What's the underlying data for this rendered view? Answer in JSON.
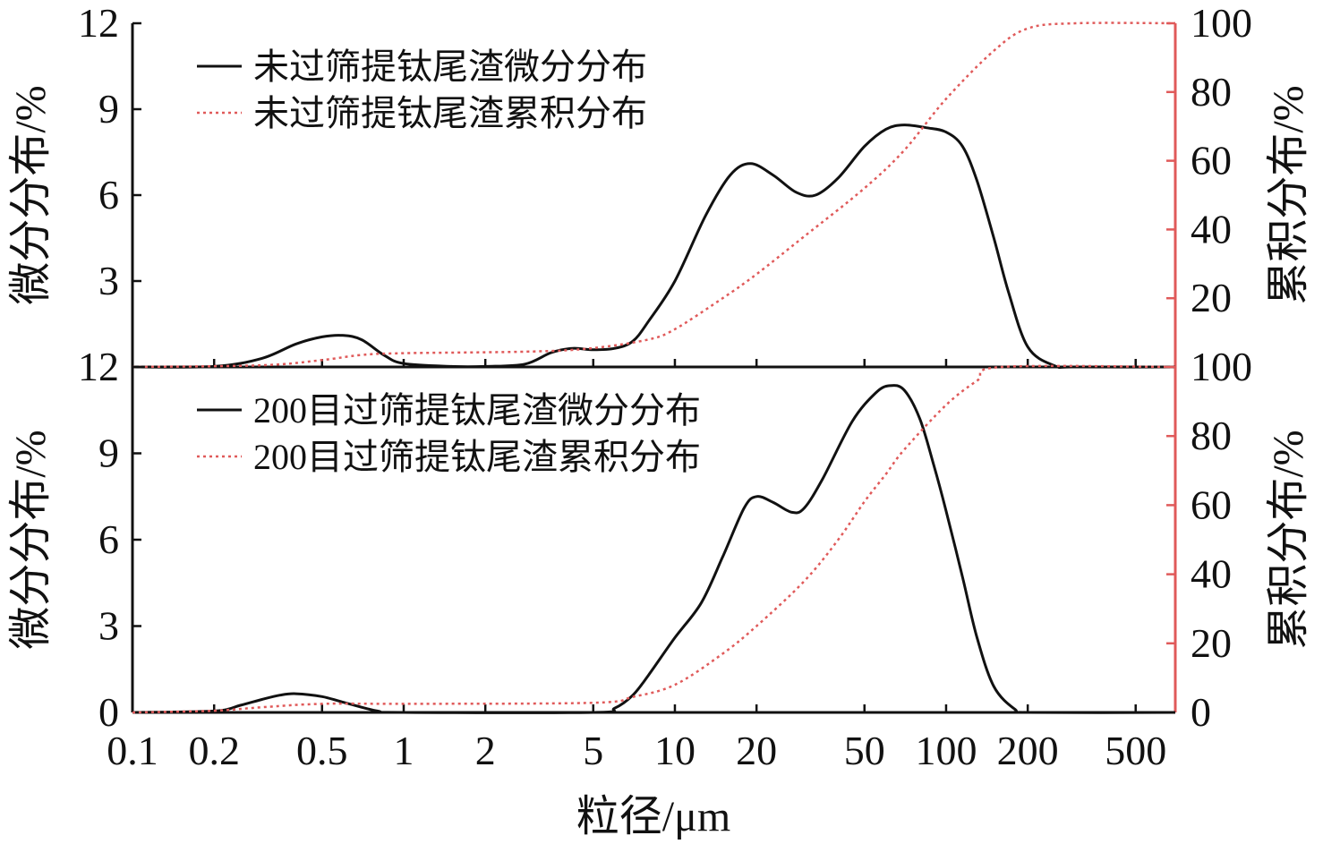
{
  "x_axis": {
    "label": "粒径/μm",
    "scale": "log",
    "range": [
      0.1,
      700
    ],
    "ticks": [
      0.1,
      0.2,
      0.5,
      1,
      2,
      5,
      10,
      20,
      50,
      100,
      200,
      500
    ],
    "tick_labels": [
      "0.1",
      "0.2",
      "0.5",
      "1",
      "2",
      "5",
      "10",
      "20",
      "50",
      "100",
      "200",
      "500"
    ]
  },
  "colors": {
    "differential": "#111111",
    "cumulative": "#e05a5a",
    "right_axis": "#e05a5a"
  },
  "chart_data": [
    {
      "type": "line",
      "panel": "top",
      "xlabel": "粒径/μm",
      "ylabel_left": "微分分布/%",
      "ylabel_right": "累积分布/%",
      "ylim_left": [
        0,
        12
      ],
      "ylim_right": [
        0,
        100
      ],
      "yticks_left": [
        "12",
        "9",
        "6",
        "3"
      ],
      "yticks_right": [
        "100",
        "80",
        "60",
        "40",
        "20"
      ],
      "legend_position": "top-left",
      "series": [
        {
          "name": "未过筛提钛尾渣微分分布",
          "axis": "left",
          "style": "solid",
          "points": [
            [
              0.1,
              0
            ],
            [
              0.2,
              0.02
            ],
            [
              0.3,
              0.3
            ],
            [
              0.4,
              0.8
            ],
            [
              0.5,
              1.05
            ],
            [
              0.6,
              1.1
            ],
            [
              0.7,
              0.95
            ],
            [
              0.85,
              0.4
            ],
            [
              1,
              0.12
            ],
            [
              1.5,
              0.02
            ],
            [
              2,
              0.02
            ],
            [
              2.8,
              0.1
            ],
            [
              3.5,
              0.5
            ],
            [
              4.2,
              0.65
            ],
            [
              5,
              0.6
            ],
            [
              6,
              0.65
            ],
            [
              7,
              0.9
            ],
            [
              8,
              1.6
            ],
            [
              10,
              3.0
            ],
            [
              13,
              5.3
            ],
            [
              16,
              6.7
            ],
            [
              19,
              7.1
            ],
            [
              23,
              6.7
            ],
            [
              28,
              6.1
            ],
            [
              33,
              6.0
            ],
            [
              40,
              6.6
            ],
            [
              50,
              7.7
            ],
            [
              60,
              8.3
            ],
            [
              70,
              8.45
            ],
            [
              85,
              8.35
            ],
            [
              100,
              8.2
            ],
            [
              115,
              7.7
            ],
            [
              130,
              6.5
            ],
            [
              150,
              4.5
            ],
            [
              170,
              2.6
            ],
            [
              200,
              0.7
            ],
            [
              250,
              0.05
            ],
            [
              300,
              0
            ],
            [
              700,
              0
            ]
          ]
        },
        {
          "name": "未过筛提钛尾渣累积分布",
          "axis": "right",
          "style": "dotted",
          "points": [
            [
              0.1,
              0
            ],
            [
              0.3,
              0.5
            ],
            [
              0.5,
              2
            ],
            [
              0.7,
              3.5
            ],
            [
              1,
              4
            ],
            [
              3,
              4.5
            ],
            [
              5,
              5.5
            ],
            [
              8,
              8
            ],
            [
              10,
              11
            ],
            [
              15,
              20
            ],
            [
              20,
              27
            ],
            [
              30,
              38
            ],
            [
              50,
              52
            ],
            [
              70,
              63
            ],
            [
              100,
              78
            ],
            [
              150,
              92
            ],
            [
              200,
              98.5
            ],
            [
              300,
              100
            ],
            [
              700,
              100
            ]
          ]
        }
      ]
    },
    {
      "type": "line",
      "panel": "bottom",
      "xlabel": "粒径/μm",
      "ylabel_left": "微分分布/%",
      "ylabel_right": "累积分布/%",
      "ylim_left": [
        0,
        12
      ],
      "ylim_right": [
        0,
        100
      ],
      "yticks_left": [
        "12",
        "9",
        "6",
        "3",
        "0"
      ],
      "yticks_right": [
        "100",
        "80",
        "60",
        "40",
        "20",
        "0"
      ],
      "legend_position": "top-left",
      "series": [
        {
          "name": "200目过筛提钛尾渣微分分布",
          "axis": "left",
          "style": "solid",
          "points": [
            [
              0.1,
              0
            ],
            [
              0.2,
              0.05
            ],
            [
              0.25,
              0.25
            ],
            [
              0.3,
              0.45
            ],
            [
              0.35,
              0.6
            ],
            [
              0.4,
              0.65
            ],
            [
              0.5,
              0.55
            ],
            [
              0.6,
              0.35
            ],
            [
              0.8,
              0.05
            ],
            [
              1,
              0
            ],
            [
              5,
              0
            ],
            [
              6,
              0.15
            ],
            [
              7,
              0.6
            ],
            [
              8,
              1.3
            ],
            [
              10,
              2.6
            ],
            [
              12.5,
              3.8
            ],
            [
              15,
              5.4
            ],
            [
              18,
              7.1
            ],
            [
              20,
              7.5
            ],
            [
              23,
              7.3
            ],
            [
              27,
              6.95
            ],
            [
              30,
              7.1
            ],
            [
              35,
              8.1
            ],
            [
              45,
              10.1
            ],
            [
              55,
              11.1
            ],
            [
              62,
              11.35
            ],
            [
              70,
              11.2
            ],
            [
              80,
              10.2
            ],
            [
              90,
              8.6
            ],
            [
              100,
              7.0
            ],
            [
              115,
              4.7
            ],
            [
              130,
              2.6
            ],
            [
              150,
              0.9
            ],
            [
              180,
              0.1
            ],
            [
              200,
              0
            ],
            [
              700,
              0
            ]
          ]
        },
        {
          "name": "200目过筛提钛尾渣累积分布",
          "axis": "right",
          "style": "dotted",
          "points": [
            [
              0.1,
              0
            ],
            [
              0.2,
              0.5
            ],
            [
              0.3,
              1.5
            ],
            [
              0.5,
              2.5
            ],
            [
              1,
              2.5
            ],
            [
              5,
              2.8
            ],
            [
              7,
              4.5
            ],
            [
              10,
              8
            ],
            [
              15,
              17
            ],
            [
              20,
              25
            ],
            [
              30,
              38
            ],
            [
              40,
              50
            ],
            [
              50,
              61
            ],
            [
              60,
              69
            ],
            [
              70,
              76
            ],
            [
              100,
              89
            ],
            [
              130,
              96
            ],
            [
              160,
              100
            ],
            [
              700,
              100
            ]
          ]
        }
      ]
    }
  ]
}
